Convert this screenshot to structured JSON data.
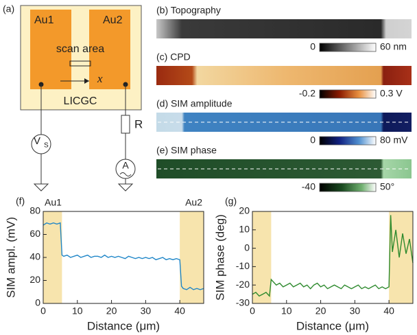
{
  "schematic": {
    "label": "(a)",
    "electrode1": "Au1",
    "electrode2": "Au2",
    "scan_area": "scan area",
    "x_symbol": "x",
    "substrate": "LICGC",
    "source": "V",
    "source_subscript": "S",
    "resistor": "R",
    "ammeter": "A"
  },
  "images": [
    {
      "label": "(b) Topography",
      "colorbar_min": "0",
      "colorbar_max": "60 nm"
    },
    {
      "label": "(c) CPD",
      "colorbar_min": "-0.2",
      "colorbar_max": "0.3 V"
    },
    {
      "label": "(d) SIM amplitude",
      "colorbar_min": "0",
      "colorbar_max": "80 mV"
    },
    {
      "label": "(e) SIM phase",
      "colorbar_min": "-40",
      "colorbar_max": "50°"
    }
  ],
  "chart_data": [
    {
      "type": "line",
      "panel_label": "(f)",
      "xlabel": "Distance (μm)",
      "ylabel": "SIM ampl. (mV)",
      "xlim": [
        0,
        47
      ],
      "ylim": [
        0,
        80
      ],
      "xticks": [
        0,
        10,
        20,
        30,
        40
      ],
      "yticks": [
        0,
        20,
        40,
        60,
        80
      ],
      "highlight_spans": [
        [
          0,
          5.5
        ],
        [
          40,
          47
        ]
      ],
      "span_labels": [
        "Au1",
        "Au2"
      ],
      "span_color": "#f7e4ad",
      "color": "#1f86c8",
      "x": [
        0,
        1,
        2,
        3,
        4,
        5,
        5.5,
        6,
        7,
        8,
        9,
        10,
        11,
        12,
        13,
        14,
        15,
        16,
        17,
        18,
        19,
        20,
        21,
        22,
        23,
        24,
        25,
        26,
        27,
        28,
        29,
        30,
        31,
        32,
        33,
        34,
        35,
        36,
        37,
        38,
        39,
        40,
        40.5,
        41,
        42,
        43,
        44,
        45,
        46,
        47
      ],
      "values": [
        68,
        70,
        69,
        70,
        69,
        70,
        42,
        41,
        42,
        40,
        41,
        42,
        40,
        41,
        42,
        40,
        41,
        41,
        40,
        42,
        40,
        41,
        40,
        41,
        40,
        39,
        41,
        40,
        39,
        40,
        39,
        40,
        39,
        40,
        38,
        39,
        40,
        38,
        39,
        38,
        39,
        38,
        15,
        13,
        12,
        14,
        12,
        13,
        12,
        13
      ]
    },
    {
      "type": "line",
      "panel_label": "(g)",
      "xlabel": "Distance (μm)",
      "ylabel": "SIM phase (deg)",
      "xlim": [
        0,
        47
      ],
      "ylim": [
        -30,
        20
      ],
      "xticks": [
        0,
        10,
        20,
        30,
        40
      ],
      "yticks": [
        -30,
        -20,
        -10,
        0,
        10,
        20
      ],
      "highlight_spans": [
        [
          0,
          5.5
        ],
        [
          40,
          47
        ]
      ],
      "span_color": "#f7e4ad",
      "color": "#2e8a2e",
      "x": [
        0,
        1,
        2,
        3,
        4,
        5,
        5.5,
        6,
        7,
        8,
        9,
        10,
        11,
        12,
        13,
        14,
        15,
        16,
        17,
        18,
        19,
        20,
        21,
        22,
        23,
        24,
        25,
        26,
        27,
        28,
        29,
        30,
        31,
        32,
        33,
        34,
        35,
        36,
        37,
        38,
        39,
        40,
        40.5,
        41,
        42,
        43,
        44,
        45,
        46,
        47
      ],
      "values": [
        -25,
        -24,
        -26,
        -25,
        -24,
        -26,
        -17,
        -18,
        -20,
        -19,
        -21,
        -20,
        -19,
        -21,
        -20,
        -19,
        -21,
        -20,
        -22,
        -20,
        -19,
        -21,
        -20,
        -22,
        -21,
        -20,
        -21,
        -22,
        -20,
        -21,
        -22,
        -21,
        -20,
        -22,
        -21,
        -22,
        -21,
        -20,
        -22,
        -21,
        -22,
        -21,
        18,
        -2,
        10,
        -5,
        8,
        -3,
        5,
        -8
      ]
    }
  ]
}
